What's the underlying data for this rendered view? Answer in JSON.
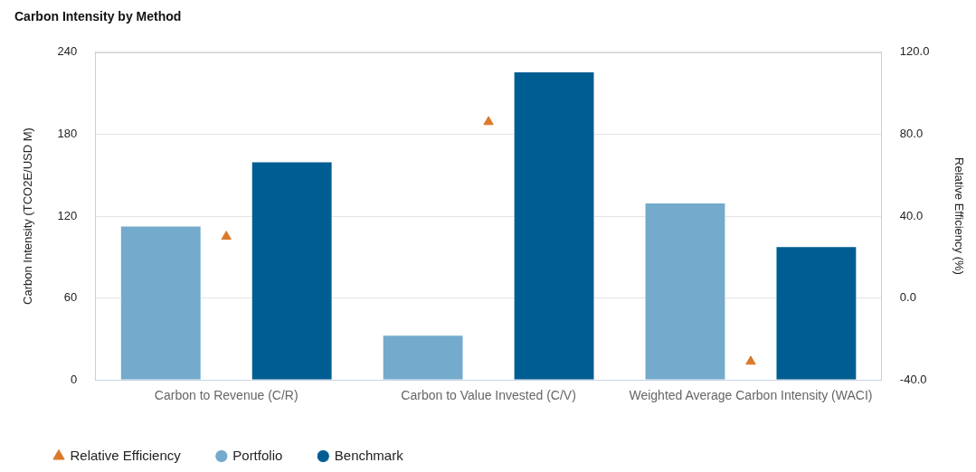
{
  "chart_data": {
    "type": "bar",
    "title": "Carbon Intensity by Method",
    "ylabel": "Carbon Intensity (TCO2E/USD M)",
    "y2label": "Relative Efficiency (%)",
    "categories": [
      "Carbon to Revenue (C/R)",
      "Carbon to Value Invested (C/V)",
      "Weighted Average Carbon Intensity (WACI)"
    ],
    "series": [
      {
        "name": "Portfolio",
        "color": "#74abcc",
        "values": [
          113,
          33,
          130
        ]
      },
      {
        "name": "Benchmark",
        "color": "#005d92",
        "values": [
          160,
          226,
          98
        ]
      },
      {
        "name": "Relative Efficiency",
        "type": "scatter",
        "axis": "y2",
        "color": "#d97a2b",
        "marker": "triangle",
        "x": [
          "Carbon to Revenue (C/R)",
          "Carbon to Value Invested (C/V)",
          "Weighted Average Carbon Intensity (WACI)"
        ],
        "values": [
          30,
          86,
          -31
        ]
      }
    ],
    "ylim": [
      0,
      240
    ],
    "yticks": [
      0,
      60,
      120,
      180,
      240
    ],
    "y2lim": [
      -40,
      120
    ],
    "y2ticks": [
      {
        "value": -40,
        "label": "-40.0"
      },
      {
        "value": 0,
        "label": "0.0"
      },
      {
        "value": 40,
        "label": "40.0"
      },
      {
        "value": 80,
        "label": "80.0"
      },
      {
        "value": 120,
        "label": "120.0"
      }
    ],
    "grid": "y",
    "legend": "bottom left"
  }
}
